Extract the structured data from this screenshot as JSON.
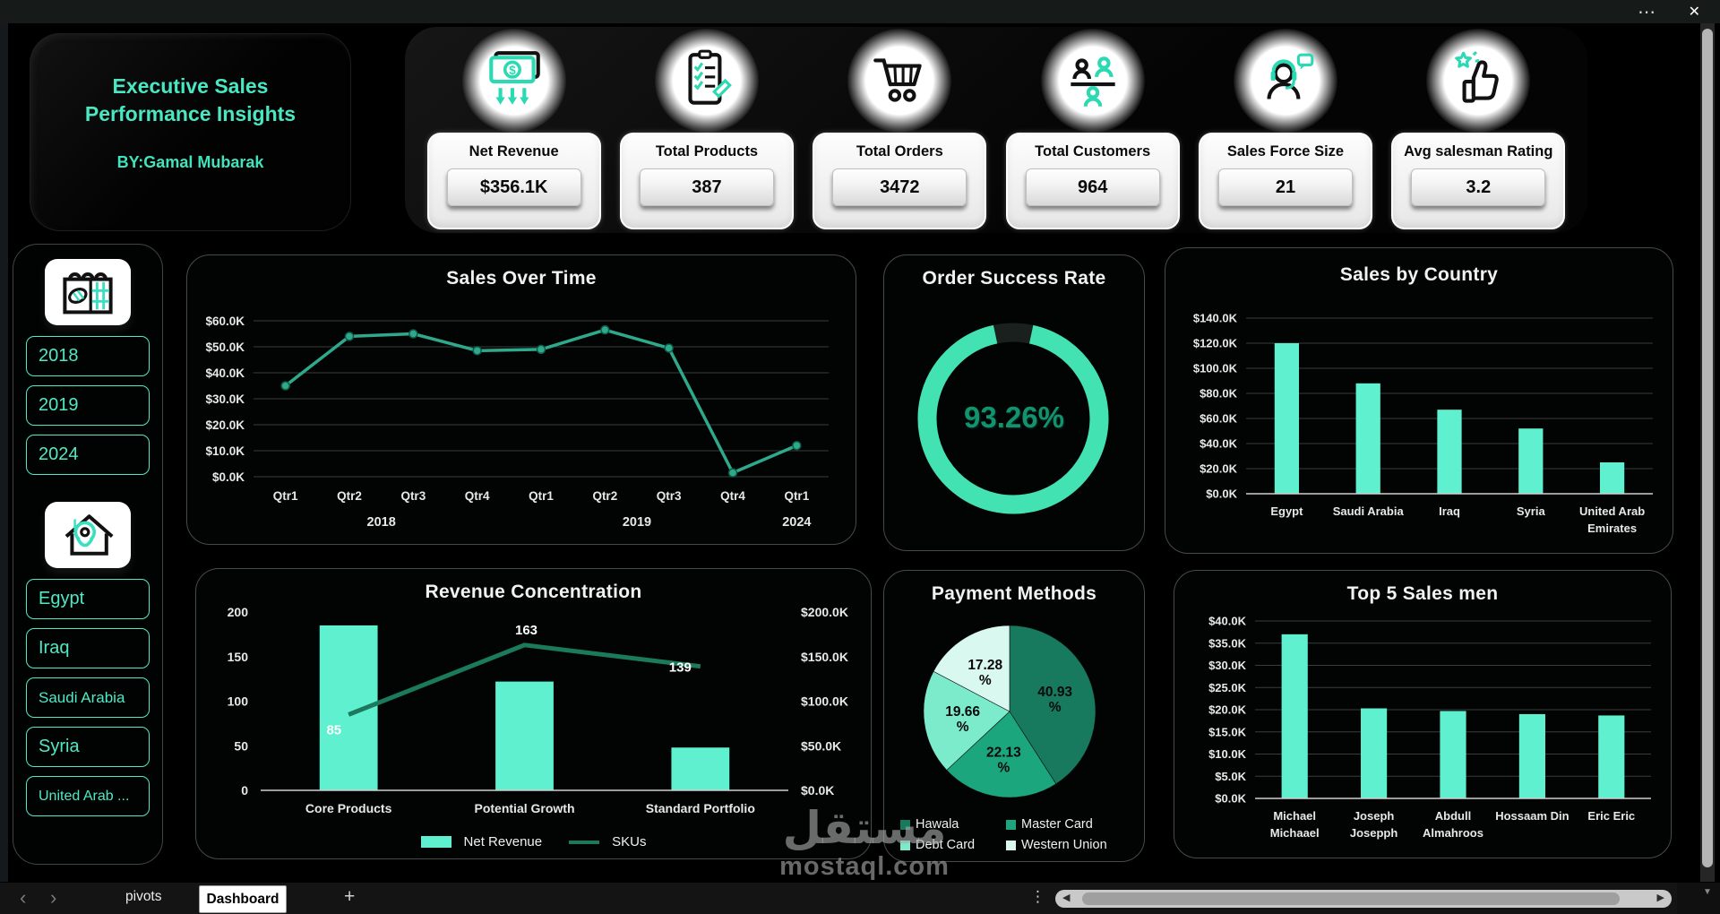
{
  "window": {
    "more_label": "⋯",
    "close_label": "✕"
  },
  "header": {
    "title": "Executive Sales Performance Insights",
    "byline": "BY:Gamal Mubarak"
  },
  "kpis": [
    {
      "label": "Net Revenue",
      "value": "$356.1K",
      "icon": "money-icon"
    },
    {
      "label": "Total Products",
      "value": "387",
      "icon": "checklist-icon"
    },
    {
      "label": "Total Orders",
      "value": "3472",
      "icon": "cart-icon"
    },
    {
      "label": "Total Customers",
      "value": "964",
      "icon": "customers-icon"
    },
    {
      "label": "Sales Force Size",
      "value": "21",
      "icon": "support-agent-icon"
    },
    {
      "label": "Avg salesman Rating",
      "value": "3.2",
      "icon": "thumbs-up-icon"
    }
  ],
  "slicers": {
    "years": [
      "2018",
      "2019",
      "2024"
    ],
    "countries": [
      "Egypt",
      "Iraq",
      "Saudi Arabia",
      "Syria",
      "United Arab ..."
    ]
  },
  "watermark": {
    "arabic": "مستقل",
    "domain": "mostaql.com"
  },
  "sheet_bar": {
    "nav_prev": "‹",
    "nav_next": "›",
    "tabs": [
      {
        "label": "pivots",
        "active": false
      },
      {
        "label": "Dashboard",
        "active": true
      }
    ],
    "add_label": "+",
    "more_label": "⋮",
    "hscroll_left": "◀",
    "hscroll_right": "▶",
    "vscroll_down": "▼"
  },
  "colors": {
    "background": "#000000",
    "accent": "#47E8C3",
    "mint_bar": "#5FF0CF",
    "line": "#2FA98B",
    "marker_edge": "#0d5c47",
    "dark_green": "#1B7A5C",
    "donut_ring": "#43E2B2",
    "donut_track": "#1a201d",
    "donut_text": "#12936E",
    "axis_text": "#E8E8E8",
    "grid": "#3B3B3B",
    "baseline": "#CFCFCF",
    "panel_border": "#454B48"
  },
  "chart_data": [
    {
      "id": "sales_over_time",
      "type": "line",
      "title": "Sales Over Time",
      "x": [
        "Qtr1",
        "Qtr2",
        "Qtr3",
        "Qtr4",
        "Qtr1",
        "Qtr2",
        "Qtr3",
        "Qtr4",
        "Qtr1"
      ],
      "year_groups": [
        {
          "label": "2018",
          "count": 4
        },
        {
          "label": "2019",
          "count": 4
        },
        {
          "label": "2024",
          "count": 1
        }
      ],
      "values": [
        35,
        54,
        55,
        48.5,
        49,
        56.5,
        49.5,
        1.5,
        12
      ],
      "unit": "$K",
      "ylim": [
        0,
        60
      ],
      "ytick_step": 10,
      "grid": true
    },
    {
      "id": "order_success_rate",
      "type": "donut",
      "title": "Order Success Rate",
      "value_pct": 93.26,
      "label": "93.26%"
    },
    {
      "id": "sales_by_country",
      "type": "bar",
      "title": "Sales by Country",
      "categories": [
        "Egypt",
        "Saudi Arabia",
        "Iraq",
        "Syria",
        "United Arab Emirates"
      ],
      "category_lines": [
        [
          "Egypt"
        ],
        [
          "Saudi Arabia"
        ],
        [
          "Iraq"
        ],
        [
          "Syria"
        ],
        [
          "United Arab",
          "Emirates"
        ]
      ],
      "values": [
        120,
        88,
        67,
        52,
        25
      ],
      "unit": "$K",
      "ylim": [
        0,
        140
      ],
      "ytick_step": 20,
      "grid": true,
      "bar_ratio": 0.3
    },
    {
      "id": "revenue_concentration",
      "type": "combo",
      "title": "Revenue Concentration",
      "categories": [
        "Core Products",
        "Potential Growth",
        "Standard Portfolio"
      ],
      "bar_series": {
        "name": "Net Revenue",
        "values": [
          185,
          122,
          48
        ],
        "axis": "right",
        "unit": "$K"
      },
      "line_series": {
        "name": "SKUs",
        "values": [
          85,
          163,
          139
        ],
        "axis": "left"
      },
      "left_axis": {
        "min": 0,
        "max": 200,
        "step": 50
      },
      "right_axis": {
        "min": 0,
        "max": 200,
        "step": 50,
        "format": "$K"
      },
      "grid": false,
      "legend_position": "bottom"
    },
    {
      "id": "payment_methods",
      "type": "pie",
      "title": "Payment Methods",
      "slices": [
        {
          "name": "Hawala",
          "pct": 40.93,
          "color": "#17795E",
          "label_lines": [
            "40.93",
            "%"
          ]
        },
        {
          "name": "Master Card",
          "pct": 22.13,
          "color": "#1CA67D",
          "label_lines": [
            "22.13",
            "%"
          ]
        },
        {
          "name": "Debt Card",
          "pct": 19.66,
          "color": "#7BEBCC",
          "label_lines": [
            "19.66",
            "%"
          ]
        },
        {
          "name": "Western Union",
          "pct": 17.28,
          "color": "#D9F8EF",
          "label_lines": [
            "17.28",
            "%"
          ]
        }
      ],
      "legend_position": "bottom"
    },
    {
      "id": "top_salesmen",
      "type": "bar",
      "title": "Top 5 Sales men",
      "categories": [
        "Michael Michaael",
        "Joseph Josepph",
        "Abdull Almahroos",
        "Hossaam Din",
        "Eric Eric"
      ],
      "category_lines": [
        [
          "Michael",
          "Michaael"
        ],
        [
          "Joseph",
          "Josepph"
        ],
        [
          "Abdull",
          "Almahroos"
        ],
        [
          "Hossaam Din"
        ],
        [
          "Eric Eric"
        ]
      ],
      "values": [
        37,
        20.3,
        19.7,
        19,
        18.7
      ],
      "unit": "$K",
      "ylim": [
        0,
        40
      ],
      "ytick_step": 5,
      "grid": true,
      "bar_ratio": 0.33
    }
  ]
}
